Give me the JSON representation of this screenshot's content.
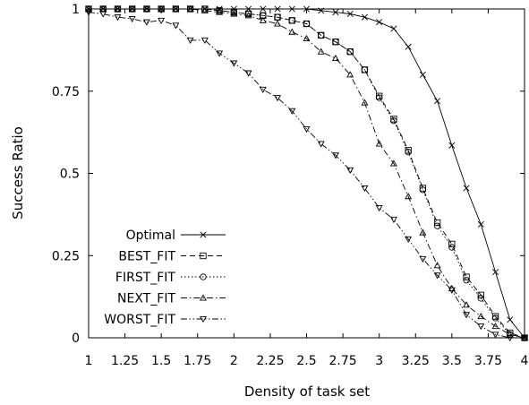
{
  "chart_data": {
    "type": "line",
    "title": "",
    "xlabel": "Density of task set",
    "ylabel": "Success Ratio",
    "xlim": [
      1,
      4
    ],
    "ylim": [
      0,
      1
    ],
    "xticks": [
      1,
      1.25,
      1.5,
      1.75,
      2,
      2.25,
      2.5,
      2.75,
      3,
      3.25,
      3.5,
      3.75,
      4
    ],
    "xtick_labels": [
      "1",
      "1.25",
      "1.5",
      "1.75",
      "2",
      "2.25",
      "2.5",
      "2.75",
      "3",
      "3.25",
      "3.5",
      "3.75",
      "4"
    ],
    "yticks": [
      0,
      0.25,
      0.5,
      0.75,
      1
    ],
    "ytick_labels": [
      "0",
      "0.25",
      "0.5",
      "0.75",
      "1"
    ],
    "grid": false,
    "legend_position": "bottom-left",
    "x": [
      1,
      1.1,
      1.2,
      1.3,
      1.4,
      1.5,
      1.6,
      1.7,
      1.8,
      1.9,
      2,
      2.1,
      2.2,
      2.3,
      2.4,
      2.5,
      2.6,
      2.7,
      2.8,
      2.9,
      3,
      3.1,
      3.2,
      3.3,
      3.4,
      3.5,
      3.6,
      3.7,
      3.8,
      3.9,
      4
    ],
    "series": [
      {
        "name": "Optimal",
        "marker": "x",
        "dash": "solid",
        "values": [
          1,
          1,
          1,
          1,
          1,
          1,
          1,
          1,
          1,
          1,
          1,
          1,
          1,
          1,
          1,
          1,
          0.995,
          0.99,
          0.985,
          0.975,
          0.96,
          0.94,
          0.885,
          0.8,
          0.72,
          0.585,
          0.455,
          0.345,
          0.2,
          0.055,
          0
        ]
      },
      {
        "name": "BEST_FIT",
        "marker": "square",
        "dash": "dashed",
        "values": [
          1,
          1,
          1,
          1,
          1,
          1,
          1,
          1,
          1,
          0.995,
          0.99,
          0.985,
          0.98,
          0.975,
          0.965,
          0.955,
          0.92,
          0.9,
          0.87,
          0.815,
          0.735,
          0.665,
          0.57,
          0.455,
          0.35,
          0.285,
          0.185,
          0.13,
          0.065,
          0.015,
          0
        ]
      },
      {
        "name": "FIRST_FIT",
        "marker": "circle",
        "dash": "dotted",
        "values": [
          1,
          1,
          1,
          1,
          1,
          1,
          1,
          1,
          1,
          0.995,
          0.99,
          0.985,
          0.98,
          0.975,
          0.965,
          0.955,
          0.92,
          0.9,
          0.87,
          0.815,
          0.73,
          0.66,
          0.565,
          0.45,
          0.34,
          0.275,
          0.175,
          0.12,
          0.06,
          0.01,
          0
        ]
      },
      {
        "name": "NEXT_FIT",
        "marker": "triangle-up",
        "dash": "dashdot",
        "values": [
          1,
          1,
          1,
          1,
          1,
          1,
          1,
          1,
          0.995,
          0.99,
          0.985,
          0.98,
          0.965,
          0.955,
          0.93,
          0.91,
          0.87,
          0.85,
          0.8,
          0.715,
          0.59,
          0.53,
          0.43,
          0.32,
          0.22,
          0.15,
          0.1,
          0.065,
          0.035,
          0.01,
          0
        ]
      },
      {
        "name": "WORST_FIT",
        "marker": "triangle-down",
        "dash": "dashdotdot",
        "values": [
          0.99,
          0.985,
          0.975,
          0.97,
          0.96,
          0.965,
          0.95,
          0.905,
          0.905,
          0.865,
          0.835,
          0.805,
          0.755,
          0.73,
          0.69,
          0.635,
          0.59,
          0.555,
          0.51,
          0.455,
          0.395,
          0.36,
          0.3,
          0.24,
          0.19,
          0.145,
          0.07,
          0.035,
          0.01,
          0,
          0
        ]
      }
    ]
  }
}
